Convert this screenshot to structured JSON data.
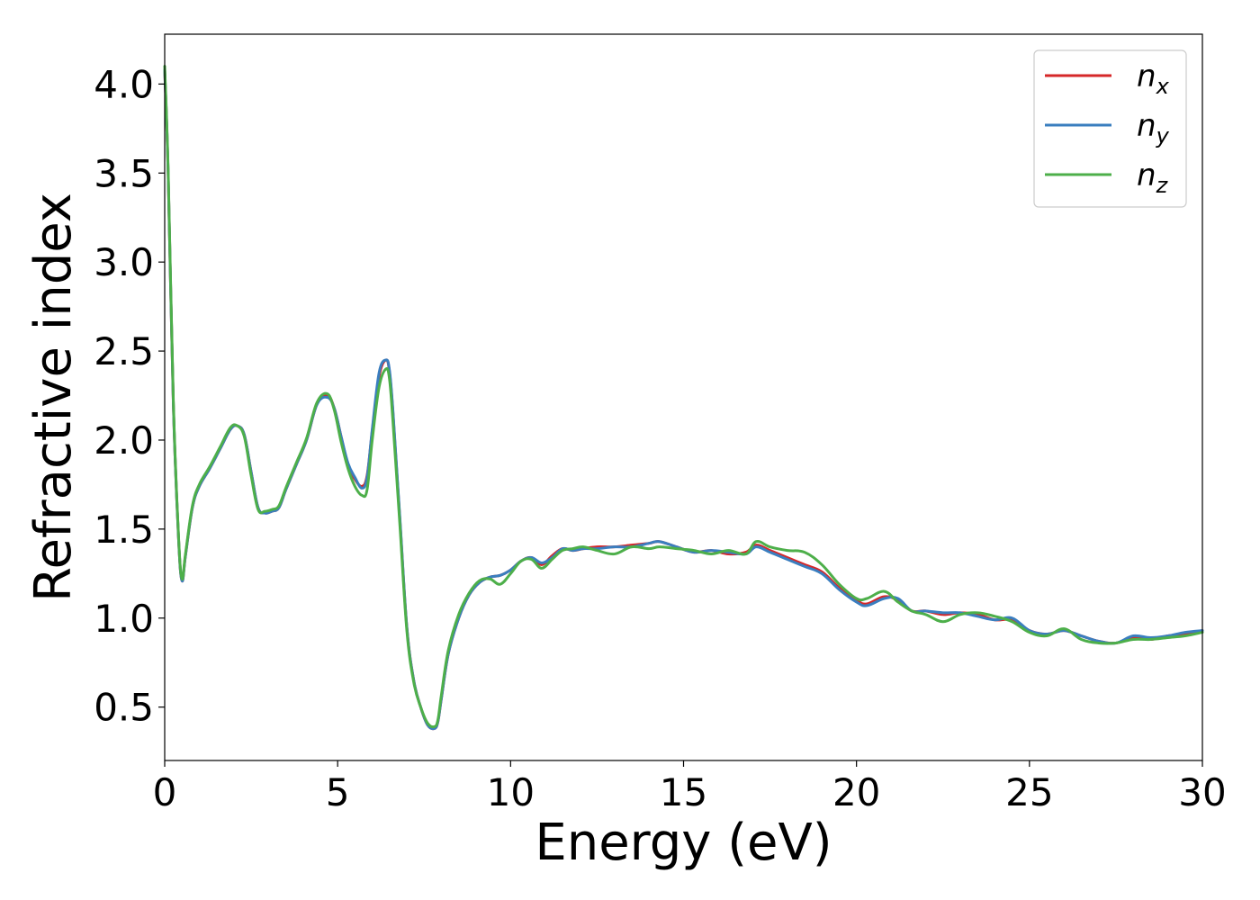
{
  "chart_data": {
    "type": "line",
    "title": "",
    "xlabel": "Energy (eV)",
    "ylabel": "Refractive index",
    "xlim": [
      0,
      30
    ],
    "ylim": [
      0.2,
      4.28
    ],
    "xticks": [
      0,
      5,
      10,
      15,
      20,
      25,
      30
    ],
    "xtick_labels": [
      "0",
      "5",
      "10",
      "15",
      "20",
      "25",
      "30"
    ],
    "yticks": [
      0.5,
      1.0,
      1.5,
      2.0,
      2.5,
      3.0,
      3.5,
      4.0
    ],
    "ytick_labels": [
      "0.5",
      "1.0",
      "1.5",
      "2.0",
      "2.5",
      "3.0",
      "3.5",
      "4.0"
    ],
    "grid": false,
    "legend_position": "top-right",
    "series": [
      {
        "name": "n_x",
        "label_base": "n",
        "label_sub": "x",
        "color": "#d62728",
        "x": [
          0,
          0.1,
          0.25,
          0.4,
          0.5,
          0.6,
          0.8,
          1.0,
          1.3,
          1.6,
          1.9,
          2.1,
          2.3,
          2.5,
          2.7,
          2.9,
          3.1,
          3.3,
          3.5,
          3.8,
          4.1,
          4.4,
          4.7,
          4.9,
          5.1,
          5.3,
          5.5,
          5.7,
          5.85,
          6.0,
          6.2,
          6.4,
          6.5,
          6.6,
          6.8,
          7.0,
          7.2,
          7.4,
          7.6,
          7.8,
          7.9,
          8.0,
          8.2,
          8.5,
          8.8,
          9.1,
          9.4,
          9.7,
          10.0,
          10.3,
          10.6,
          10.9,
          11.2,
          11.5,
          11.8,
          12.1,
          12.5,
          13.0,
          13.5,
          14.0,
          14.3,
          14.8,
          15.3,
          15.8,
          16.3,
          16.8,
          17.1,
          17.5,
          18.0,
          18.5,
          19.0,
          19.5,
          20.0,
          20.3,
          20.8,
          21.2,
          21.6,
          22.0,
          22.5,
          23.0,
          23.5,
          24.0,
          24.5,
          25.0,
          25.5,
          26.0,
          26.5,
          27.0,
          27.5,
          28.0,
          28.5,
          29.0,
          29.5,
          30.0
        ],
        "values": [
          4.08,
          3.5,
          2.2,
          1.45,
          1.21,
          1.35,
          1.62,
          1.74,
          1.84,
          1.95,
          2.06,
          2.08,
          2.03,
          1.82,
          1.62,
          1.59,
          1.6,
          1.62,
          1.72,
          1.86,
          2.0,
          2.2,
          2.25,
          2.18,
          2.02,
          1.86,
          1.78,
          1.74,
          1.8,
          2.05,
          2.36,
          2.45,
          2.38,
          2.15,
          1.55,
          0.95,
          0.65,
          0.5,
          0.4,
          0.38,
          0.42,
          0.55,
          0.8,
          1.0,
          1.13,
          1.2,
          1.23,
          1.24,
          1.27,
          1.32,
          1.34,
          1.3,
          1.35,
          1.39,
          1.38,
          1.39,
          1.4,
          1.4,
          1.41,
          1.42,
          1.43,
          1.4,
          1.37,
          1.38,
          1.36,
          1.37,
          1.41,
          1.38,
          1.34,
          1.3,
          1.26,
          1.17,
          1.1,
          1.08,
          1.12,
          1.1,
          1.04,
          1.04,
          1.02,
          1.03,
          1.02,
          0.99,
          0.99,
          0.93,
          0.91,
          0.93,
          0.9,
          0.87,
          0.86,
          0.89,
          0.88,
          0.9,
          0.91,
          0.93
        ]
      },
      {
        "name": "n_y",
        "label_base": "n",
        "label_sub": "y",
        "color": "#3a7ebf",
        "x": [
          0,
          0.1,
          0.25,
          0.4,
          0.5,
          0.6,
          0.8,
          1.0,
          1.3,
          1.6,
          1.9,
          2.1,
          2.3,
          2.5,
          2.7,
          2.9,
          3.1,
          3.3,
          3.5,
          3.8,
          4.1,
          4.4,
          4.7,
          4.9,
          5.1,
          5.3,
          5.5,
          5.7,
          5.85,
          6.0,
          6.2,
          6.4,
          6.5,
          6.6,
          6.8,
          7.0,
          7.2,
          7.4,
          7.6,
          7.8,
          7.9,
          8.0,
          8.2,
          8.5,
          8.8,
          9.1,
          9.4,
          9.7,
          10.0,
          10.3,
          10.6,
          10.9,
          11.2,
          11.5,
          11.8,
          12.1,
          12.5,
          13.0,
          13.5,
          14.0,
          14.3,
          14.8,
          15.3,
          15.8,
          16.3,
          16.8,
          17.1,
          17.5,
          18.0,
          18.5,
          19.0,
          19.5,
          20.0,
          20.3,
          20.8,
          21.2,
          21.6,
          22.0,
          22.5,
          23.0,
          23.5,
          24.0,
          24.5,
          25.0,
          25.5,
          26.0,
          26.5,
          27.0,
          27.5,
          28.0,
          28.5,
          29.0,
          29.5,
          30.0
        ],
        "values": [
          4.08,
          3.5,
          2.2,
          1.45,
          1.21,
          1.35,
          1.62,
          1.74,
          1.84,
          1.95,
          2.06,
          2.08,
          2.03,
          1.82,
          1.62,
          1.59,
          1.6,
          1.62,
          1.72,
          1.86,
          2.0,
          2.2,
          2.24,
          2.18,
          2.02,
          1.87,
          1.79,
          1.73,
          1.79,
          2.06,
          2.38,
          2.45,
          2.39,
          2.16,
          1.56,
          0.95,
          0.65,
          0.5,
          0.4,
          0.38,
          0.42,
          0.55,
          0.8,
          1.0,
          1.13,
          1.2,
          1.23,
          1.24,
          1.27,
          1.32,
          1.34,
          1.31,
          1.34,
          1.39,
          1.38,
          1.39,
          1.39,
          1.4,
          1.4,
          1.42,
          1.43,
          1.4,
          1.37,
          1.38,
          1.37,
          1.36,
          1.4,
          1.37,
          1.33,
          1.29,
          1.25,
          1.16,
          1.09,
          1.07,
          1.11,
          1.11,
          1.04,
          1.04,
          1.03,
          1.03,
          1.01,
          0.99,
          1.0,
          0.93,
          0.91,
          0.93,
          0.9,
          0.87,
          0.86,
          0.9,
          0.89,
          0.9,
          0.92,
          0.93
        ]
      },
      {
        "name": "n_z",
        "label_base": "n",
        "label_sub": "z",
        "color": "#4daf4a",
        "x": [
          0,
          0.1,
          0.25,
          0.4,
          0.5,
          0.6,
          0.8,
          1.0,
          1.3,
          1.6,
          1.9,
          2.1,
          2.3,
          2.5,
          2.7,
          2.9,
          3.1,
          3.3,
          3.5,
          3.8,
          4.1,
          4.4,
          4.7,
          4.9,
          5.1,
          5.3,
          5.5,
          5.7,
          5.85,
          6.0,
          6.2,
          6.4,
          6.5,
          6.6,
          6.8,
          7.0,
          7.2,
          7.4,
          7.6,
          7.8,
          7.9,
          8.0,
          8.2,
          8.5,
          8.8,
          9.1,
          9.4,
          9.7,
          10.0,
          10.3,
          10.6,
          10.9,
          11.2,
          11.5,
          11.8,
          12.1,
          12.5,
          13.0,
          13.5,
          14.0,
          14.3,
          14.8,
          15.3,
          15.8,
          16.3,
          16.8,
          17.1,
          17.5,
          18.0,
          18.5,
          19.0,
          19.5,
          20.0,
          20.3,
          20.8,
          21.2,
          21.6,
          22.0,
          22.5,
          23.0,
          23.5,
          24.0,
          24.5,
          25.0,
          25.5,
          26.0,
          26.5,
          27.0,
          27.5,
          28.0,
          28.5,
          29.0,
          29.5,
          30.0
        ],
        "values": [
          4.1,
          3.52,
          2.22,
          1.46,
          1.22,
          1.36,
          1.63,
          1.75,
          1.85,
          1.96,
          2.07,
          2.08,
          2.02,
          1.8,
          1.61,
          1.6,
          1.61,
          1.63,
          1.73,
          1.87,
          2.01,
          2.21,
          2.26,
          2.17,
          1.99,
          1.84,
          1.74,
          1.69,
          1.72,
          2.0,
          2.3,
          2.4,
          2.34,
          2.1,
          1.52,
          0.93,
          0.64,
          0.5,
          0.41,
          0.39,
          0.43,
          0.57,
          0.82,
          1.02,
          1.14,
          1.21,
          1.22,
          1.19,
          1.25,
          1.32,
          1.33,
          1.28,
          1.33,
          1.38,
          1.39,
          1.4,
          1.38,
          1.36,
          1.4,
          1.39,
          1.4,
          1.39,
          1.38,
          1.36,
          1.38,
          1.36,
          1.43,
          1.4,
          1.38,
          1.37,
          1.3,
          1.19,
          1.11,
          1.11,
          1.15,
          1.09,
          1.04,
          1.02,
          0.98,
          1.02,
          1.03,
          1.01,
          0.98,
          0.92,
          0.9,
          0.94,
          0.88,
          0.86,
          0.86,
          0.88,
          0.88,
          0.89,
          0.9,
          0.92
        ]
      }
    ]
  }
}
